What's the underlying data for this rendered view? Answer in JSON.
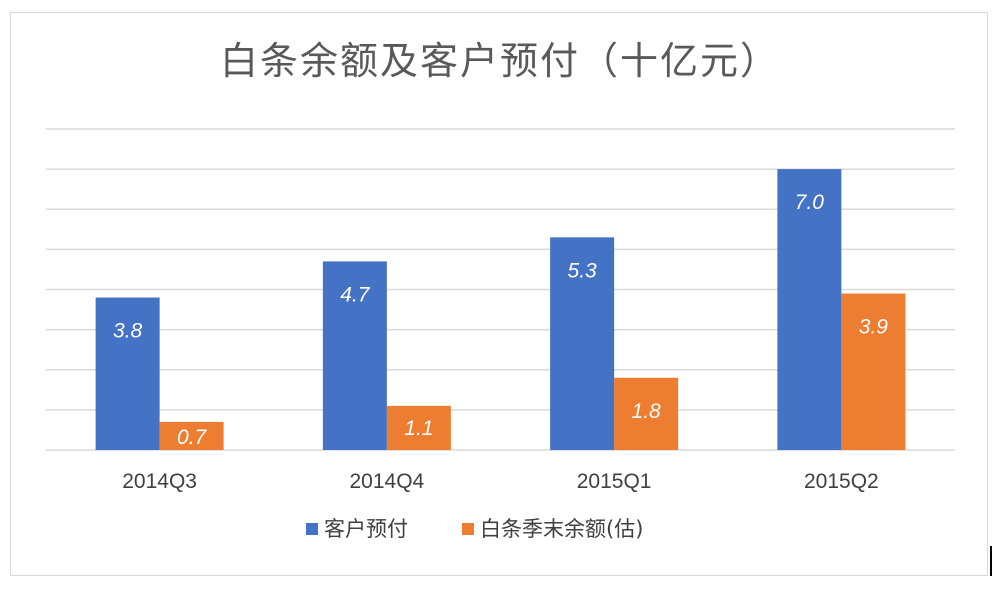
{
  "chart_data": {
    "type": "bar",
    "title": "白条余额及客户预付（十亿元）",
    "categories": [
      "2014Q3",
      "2014Q4",
      "2015Q1",
      "2015Q2"
    ],
    "series": [
      {
        "name": "客户预付",
        "values": [
          3.8,
          4.7,
          5.3,
          7.0
        ],
        "labels": [
          "3.8",
          "4.7",
          "5.3",
          "7.0"
        ],
        "color": "#4472c4"
      },
      {
        "name": "白条季末余额(估)",
        "values": [
          0.7,
          1.1,
          1.8,
          3.9
        ],
        "labels": [
          "0.7",
          "1.1",
          "1.8",
          "3.9"
        ],
        "color": "#ed7d31"
      }
    ],
    "ylim": [
      0,
      8
    ],
    "grid": true,
    "legend_position": "bottom",
    "xlabel": "",
    "ylabel": ""
  }
}
